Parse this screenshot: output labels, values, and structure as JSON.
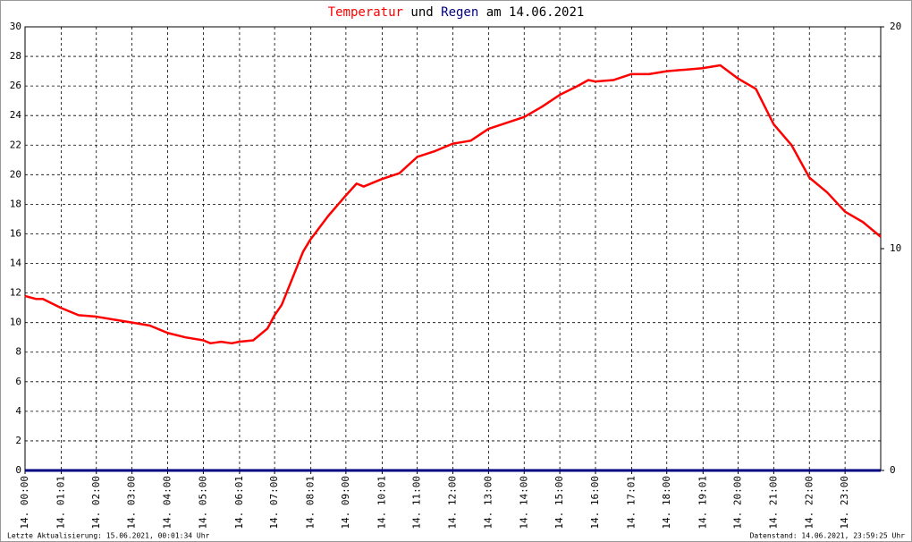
{
  "chart_data": {
    "type": "line",
    "title_connector": "und",
    "title_suffix": "am 14.06.2021",
    "series": [
      {
        "name": "Temperatur",
        "color": "#ff0000",
        "x": [
          0,
          0.3,
          0.5,
          1.0,
          1.5,
          2.0,
          2.5,
          3.0,
          3.5,
          4.0,
          4.5,
          5.0,
          5.2,
          5.5,
          5.8,
          6.0,
          6.4,
          6.8,
          7.0,
          7.2,
          7.5,
          7.8,
          8.0,
          8.5,
          9.0,
          9.3,
          9.5,
          10.0,
          10.5,
          11.0,
          11.5,
          12.0,
          12.5,
          13.0,
          13.5,
          14.0,
          14.5,
          15.0,
          15.5,
          15.8,
          16.0,
          16.5,
          17.0,
          17.5,
          18.0,
          18.5,
          19.0,
          19.5,
          20.0,
          20.5,
          21.0,
          21.5,
          22.0,
          22.5,
          23.0,
          23.5,
          24.0
        ],
        "values": [
          11.8,
          11.6,
          11.6,
          11.0,
          10.5,
          10.4,
          10.2,
          10.0,
          9.8,
          9.3,
          9.0,
          8.8,
          8.6,
          8.7,
          8.6,
          8.7,
          8.8,
          9.6,
          10.5,
          11.2,
          13.0,
          14.8,
          15.6,
          17.2,
          18.6,
          19.4,
          19.2,
          19.7,
          20.1,
          21.2,
          21.6,
          22.1,
          22.3,
          23.1,
          23.5,
          23.9,
          24.6,
          25.4,
          26.0,
          26.4,
          26.3,
          26.4,
          26.8,
          26.8,
          27.0,
          27.1,
          27.2,
          27.4,
          26.5,
          25.8,
          23.4,
          22.0,
          19.8,
          18.8,
          17.5,
          16.8,
          15.8
        ]
      },
      {
        "name": "Regen",
        "color": "#000080",
        "axis": "y2",
        "x": [
          0,
          24
        ],
        "values": [
          0,
          0
        ]
      }
    ],
    "xlim": [
      0,
      24
    ],
    "xticks": [
      {
        "value": 0,
        "label": "14. 00:00"
      },
      {
        "value": 1.017,
        "label": "14. 01:01"
      },
      {
        "value": 2,
        "label": "14. 02:00"
      },
      {
        "value": 3,
        "label": "14. 03:00"
      },
      {
        "value": 4,
        "label": "14. 04:00"
      },
      {
        "value": 5,
        "label": "14. 05:00"
      },
      {
        "value": 6.017,
        "label": "14. 06:01"
      },
      {
        "value": 7,
        "label": "14. 07:00"
      },
      {
        "value": 8.017,
        "label": "14. 08:01"
      },
      {
        "value": 9,
        "label": "14. 09:00"
      },
      {
        "value": 10.017,
        "label": "14. 10:01"
      },
      {
        "value": 11,
        "label": "14. 11:00"
      },
      {
        "value": 12,
        "label": "14. 12:00"
      },
      {
        "value": 13,
        "label": "14. 13:00"
      },
      {
        "value": 14,
        "label": "14. 14:00"
      },
      {
        "value": 15,
        "label": "14. 15:00"
      },
      {
        "value": 16,
        "label": "14. 16:00"
      },
      {
        "value": 17.017,
        "label": "14. 17:01"
      },
      {
        "value": 18,
        "label": "14. 18:00"
      },
      {
        "value": 19.017,
        "label": "14. 19:01"
      },
      {
        "value": 20,
        "label": "14. 20:00"
      },
      {
        "value": 21,
        "label": "14. 21:00"
      },
      {
        "value": 22,
        "label": "14. 22:00"
      },
      {
        "value": 23,
        "label": "14. 23:00"
      }
    ],
    "ylim": [
      0,
      30
    ],
    "yticks": [
      0,
      2,
      4,
      6,
      8,
      10,
      12,
      14,
      16,
      18,
      20,
      22,
      24,
      26,
      28,
      30
    ],
    "y2lim": [
      0,
      20
    ],
    "y2ticks": [
      0,
      10,
      20
    ],
    "grid": true,
    "footer_left": "Letzte Aktualisierung: 15.06.2021, 00:01:34 Uhr",
    "footer_right": "Datenstand: 14.06.2021, 23:59:25 Uhr"
  }
}
